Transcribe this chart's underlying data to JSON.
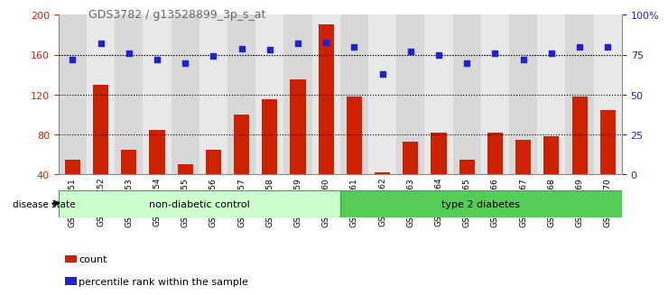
{
  "title": "GDS3782 / g13528899_3p_s_at",
  "categories": [
    "GSM524151",
    "GSM524152",
    "GSM524153",
    "GSM524154",
    "GSM524155",
    "GSM524156",
    "GSM524157",
    "GSM524158",
    "GSM524159",
    "GSM524160",
    "GSM524161",
    "GSM524162",
    "GSM524163",
    "GSM524164",
    "GSM524165",
    "GSM524166",
    "GSM524167",
    "GSM524168",
    "GSM524169",
    "GSM524170"
  ],
  "counts": [
    55,
    130,
    65,
    85,
    50,
    65,
    100,
    115,
    135,
    190,
    118,
    42,
    73,
    82,
    55,
    82,
    75,
    78,
    118,
    105
  ],
  "percentiles": [
    72,
    82,
    76,
    72,
    70,
    74,
    79,
    78,
    82,
    83,
    80,
    63,
    77,
    75,
    70,
    76,
    72,
    76,
    80,
    80
  ],
  "bar_color": "#cc2200",
  "dot_color": "#2222cc",
  "left_ylim": [
    40,
    200
  ],
  "left_yticks": [
    40,
    80,
    120,
    160,
    200
  ],
  "right_ylim": [
    0,
    100
  ],
  "right_yticks": [
    0,
    25,
    50,
    75,
    100
  ],
  "right_yticklabels": [
    "0",
    "25",
    "50",
    "75",
    "100%"
  ],
  "group1_label": "non-diabetic control",
  "group2_label": "type 2 diabetes",
  "group1_count": 10,
  "group2_count": 10,
  "disease_state_label": "disease state",
  "legend_count": "count",
  "legend_percentile": "percentile rank within the sample",
  "col_bg_even": "#d8d8d8",
  "col_bg_odd": "#e8e8e8",
  "group1_color": "#ccffcc",
  "group2_color": "#55cc55",
  "title_color": "#666666",
  "grid_color": "#333333"
}
